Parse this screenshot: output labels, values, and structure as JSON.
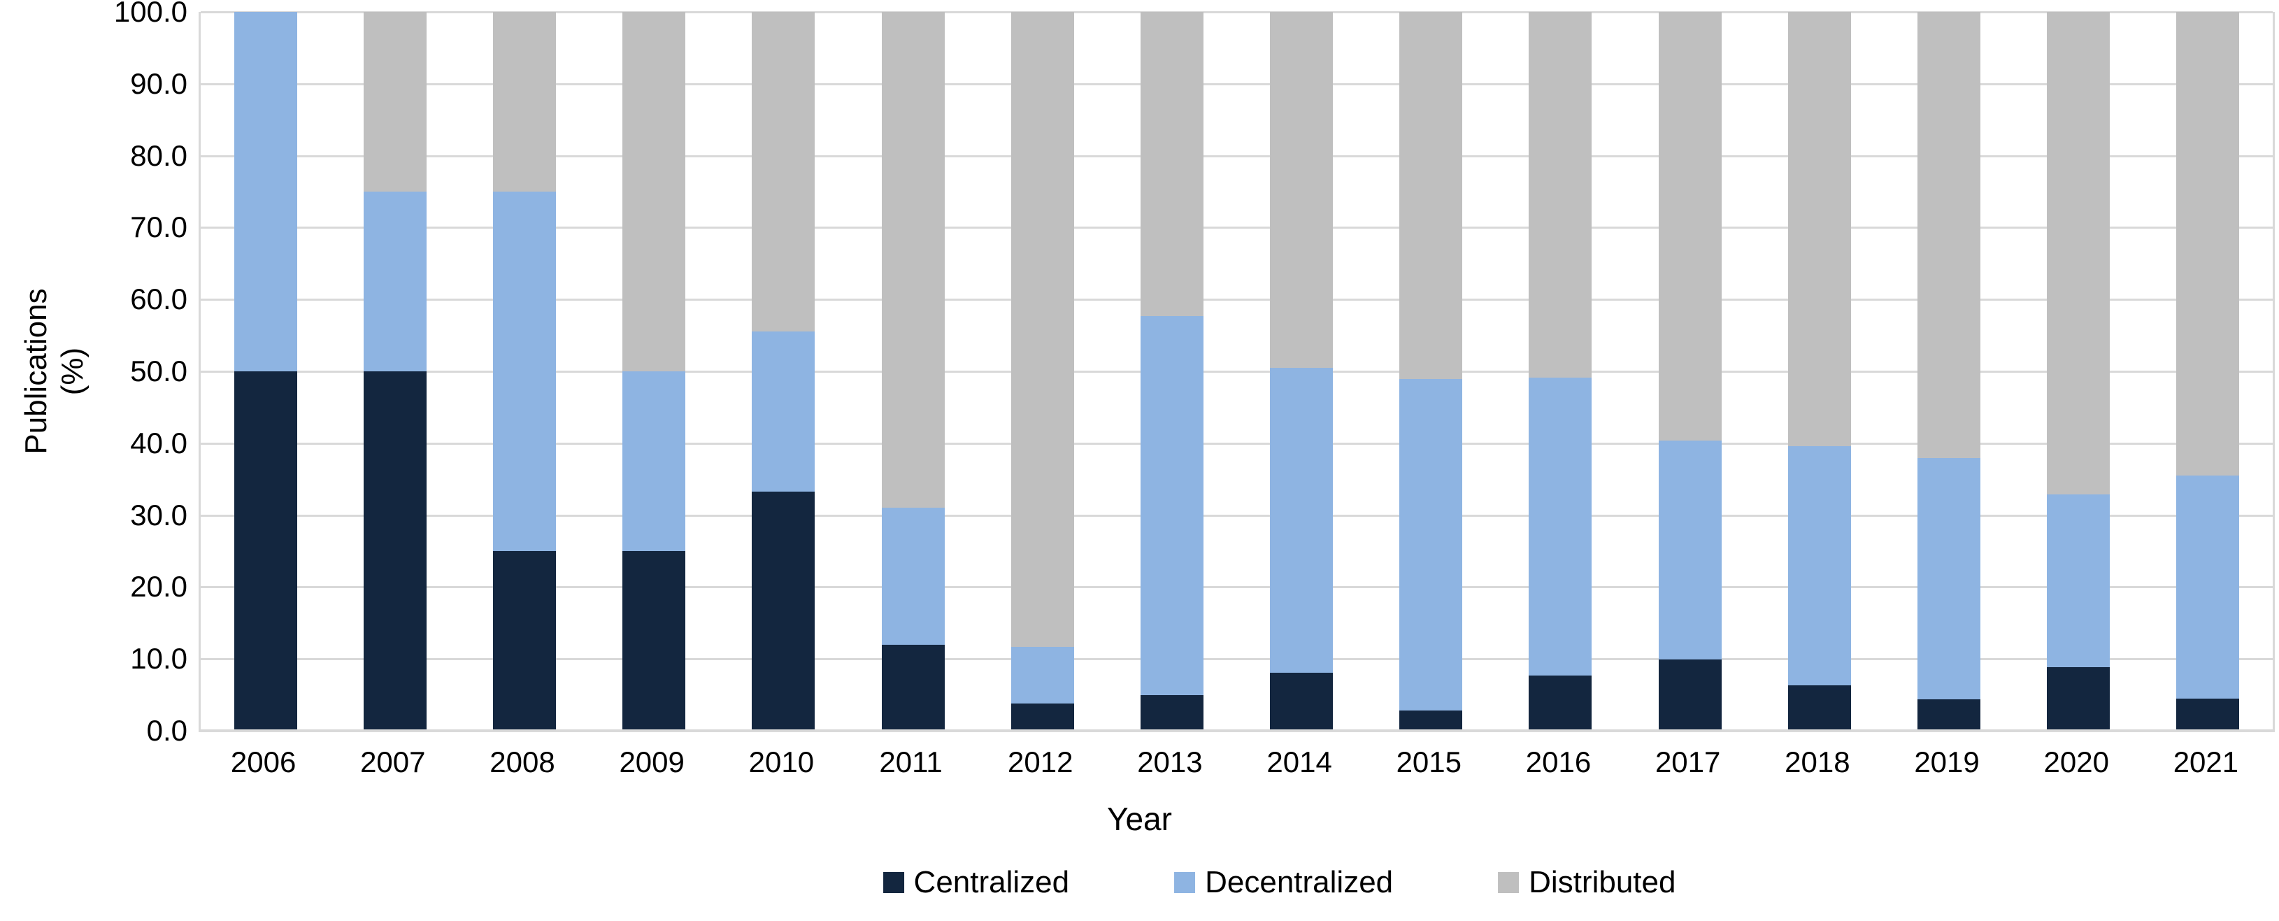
{
  "figure": {
    "y_axis": {
      "title_line1": "Publications",
      "title_line2": "(%)",
      "tick_labels": [
        "100.0",
        "90.0",
        "80.0",
        "70.0",
        "60.0",
        "50.0",
        "40.0",
        "30.0",
        "20.0",
        "10.0",
        "0.0"
      ],
      "min": 0,
      "max": 100,
      "step": 10
    },
    "x_axis": {
      "title": "Year"
    },
    "colors": {
      "centralized": "#13263f",
      "decentralized": "#8eb4e2",
      "distributed": "#bfbfbf",
      "gridline": "#d9d9d9",
      "background": "#ffffff"
    }
  },
  "chart_data": {
    "type": "bar",
    "stacked": true,
    "percent_stacked": true,
    "title": "",
    "xlabel": "Year",
    "ylabel": "Publications (%)",
    "ylim": [
      0,
      100
    ],
    "grid": true,
    "legend_position": "bottom",
    "categories": [
      "2006",
      "2007",
      "2008",
      "2009",
      "2010",
      "2011",
      "2012",
      "2013",
      "2014",
      "2015",
      "2016",
      "2017",
      "2018",
      "2019",
      "2020",
      "2021"
    ],
    "series": [
      {
        "name": "Centralized",
        "color": "#13263f",
        "values": [
          50.0,
          50.0,
          25.0,
          25.0,
          33.3,
          12.0,
          3.8,
          5.0,
          8.1,
          2.8,
          7.7,
          9.9,
          6.3,
          4.4,
          8.9,
          4.5
        ]
      },
      {
        "name": "Decentralized",
        "color": "#8eb4e2",
        "values": [
          50.0,
          25.0,
          50.0,
          25.0,
          22.2,
          19.0,
          7.9,
          52.7,
          42.4,
          46.1,
          41.4,
          30.5,
          33.3,
          33.5,
          24.0,
          31.0
        ]
      },
      {
        "name": "Distributed",
        "color": "#bfbfbf",
        "values": [
          0.0,
          25.0,
          25.0,
          50.0,
          44.4,
          69.0,
          88.3,
          42.3,
          49.5,
          51.1,
          50.9,
          59.6,
          60.4,
          62.1,
          67.1,
          64.5
        ]
      }
    ]
  }
}
